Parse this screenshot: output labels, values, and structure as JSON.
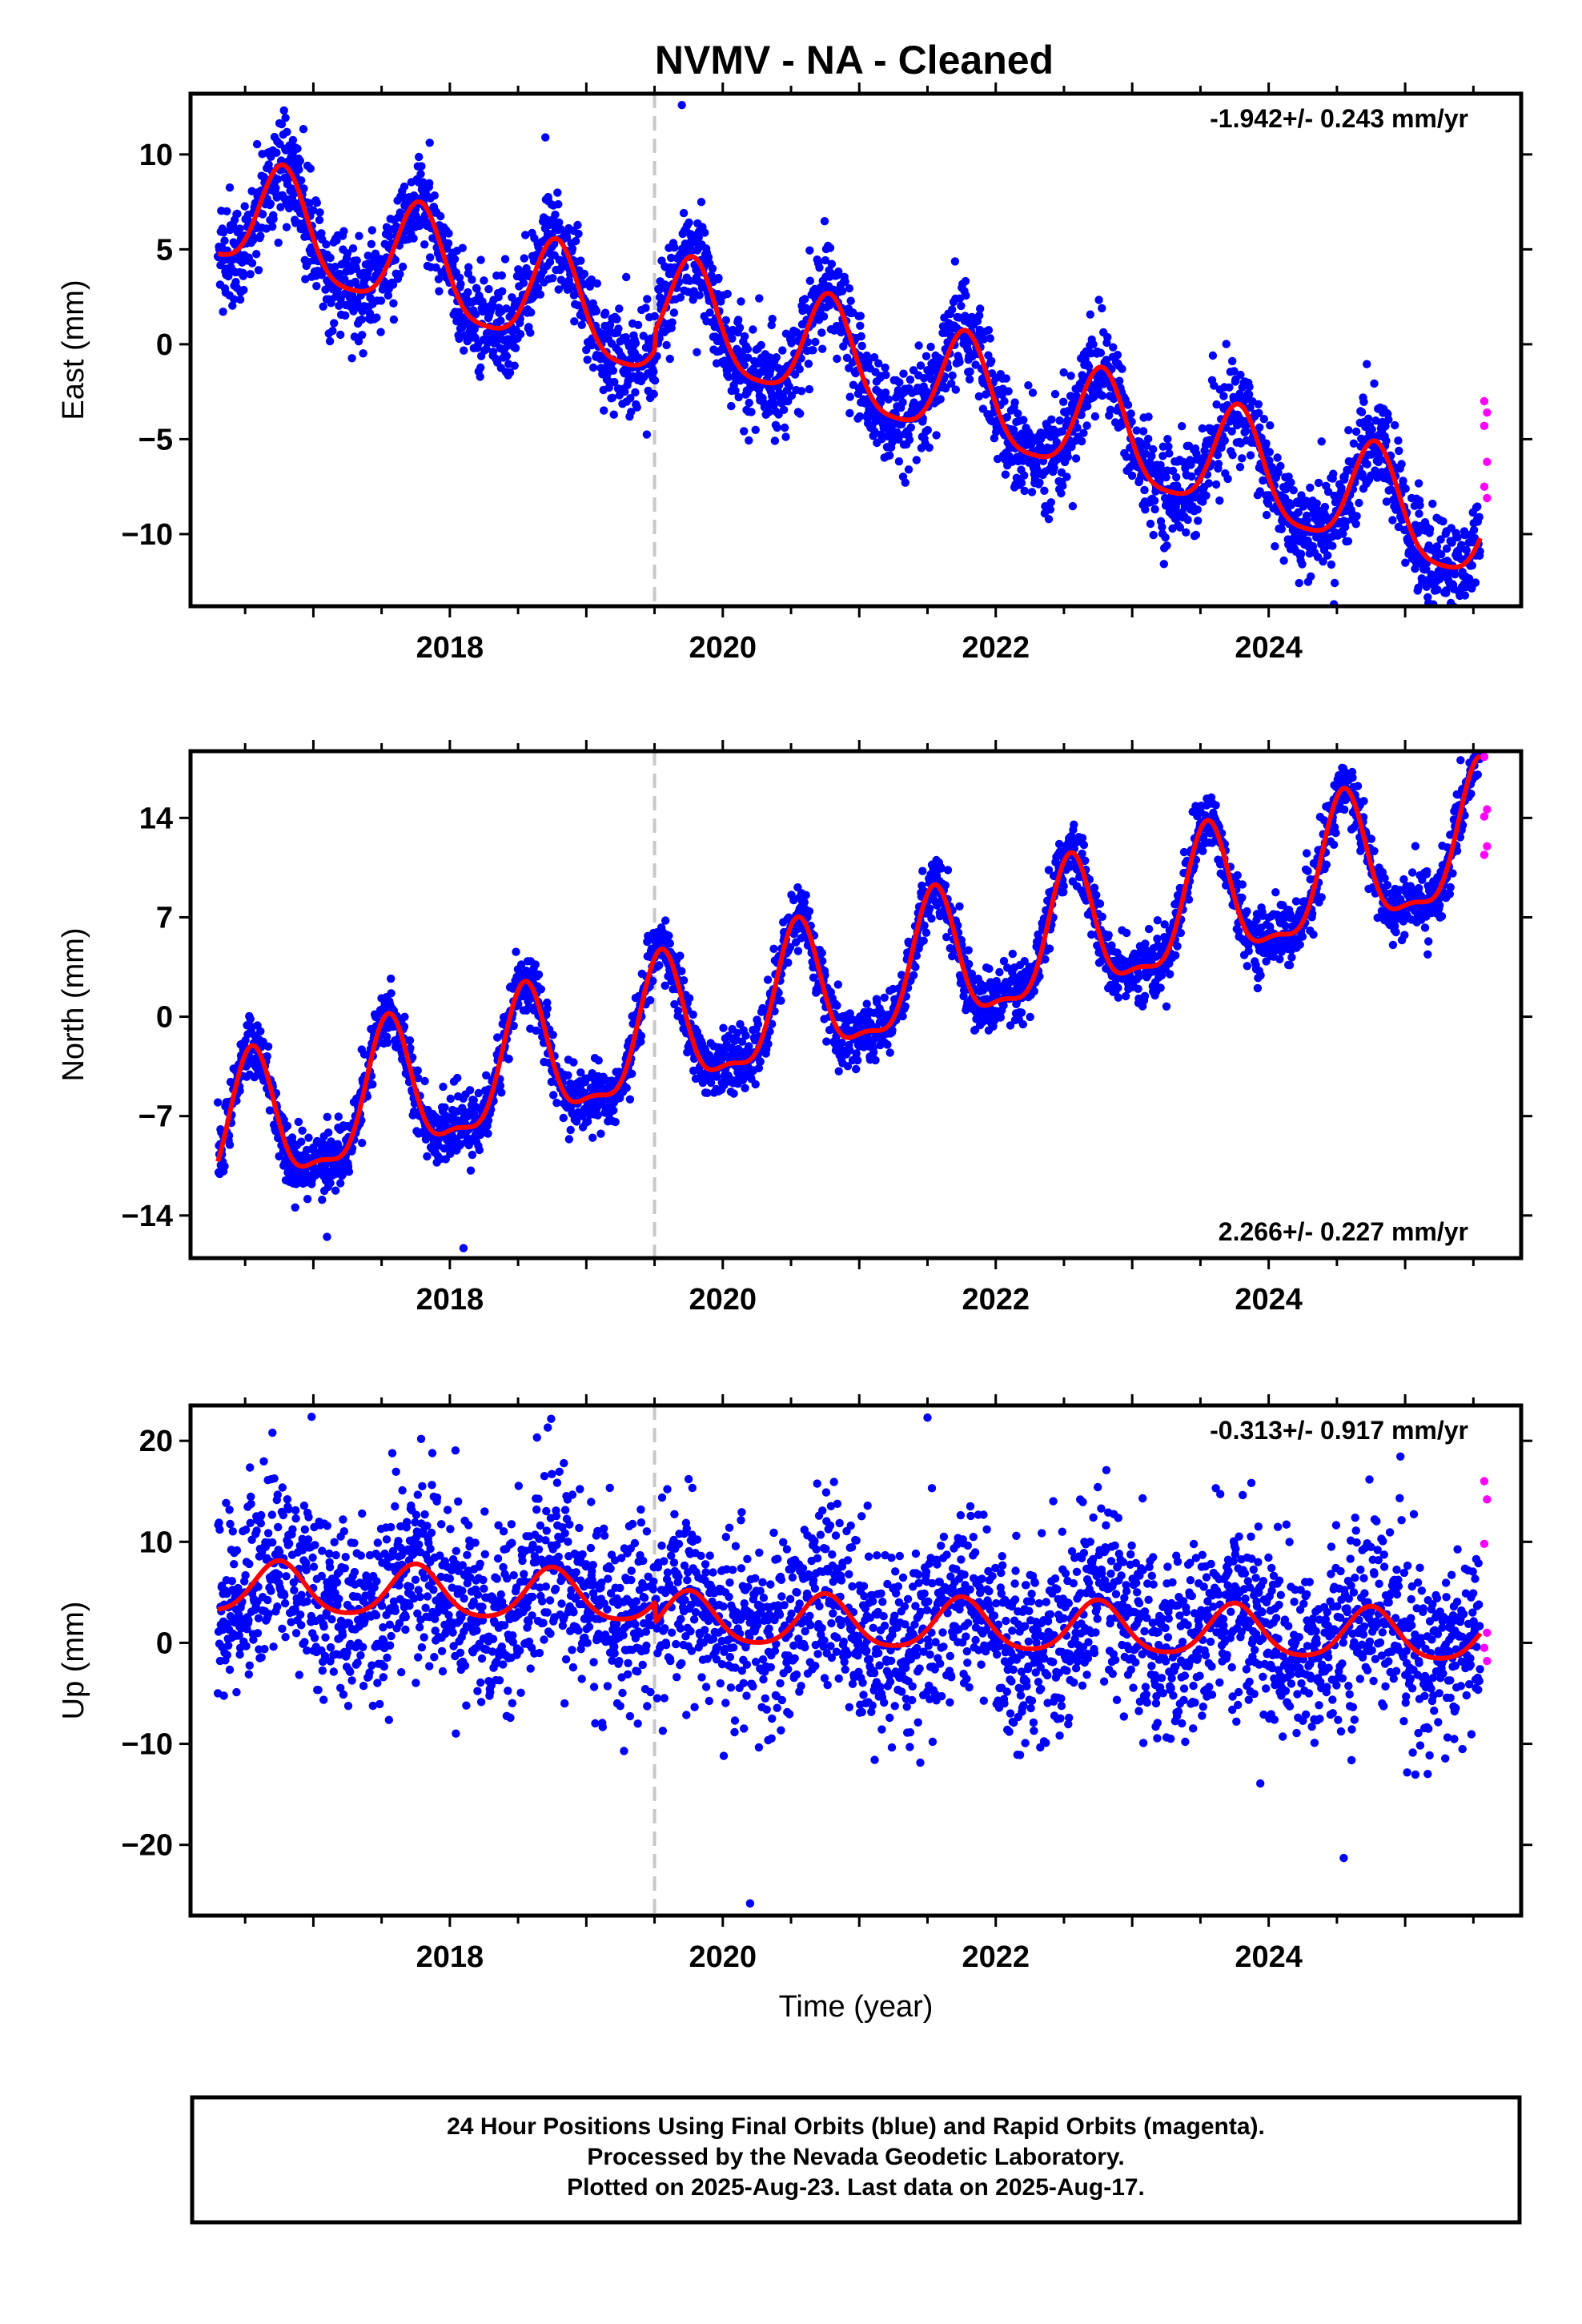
{
  "title": "NVMV  - NA - Cleaned",
  "colors": {
    "final": "#0000ff",
    "rapid": "#ff00ff",
    "model": "#ff0000",
    "marker": "#c8c8c8",
    "frame": "#000000"
  },
  "chart_data": [
    {
      "type": "scatter",
      "panel": "east",
      "ylabel": "East (mm)",
      "rate_text": "-1.942+/- 0.243 mm/yr",
      "xlim": [
        2016.1,
        2025.85
      ],
      "ylim": [
        -13.8,
        13.2
      ],
      "xticks": [
        2018,
        2020,
        2022,
        2024
      ],
      "xtick_labels": [
        "2018",
        "2020",
        "2022",
        "2024"
      ],
      "yticks": [
        10,
        5,
        0,
        -5,
        -10
      ],
      "ytick_labels": [
        "10",
        "5",
        "0",
        "−5",
        "−10"
      ],
      "grid": false,
      "equipment_change": 2019.5,
      "data_start": 2016.3,
      "data_end": 2025.55,
      "trend_mm_per_yr": -1.942,
      "value_at_start": 4.2,
      "annual_amplitude": 2.8,
      "annual_peak": 2016.78,
      "semiannual_amplitude": 0.6,
      "offset_at_marker": 1.0,
      "scatter_sd": 1.3,
      "outliers": [
        [
          2019.7,
          12.6
        ],
        [
          2018.7,
          10.9
        ],
        [
          2025.3,
          -13.1
        ]
      ],
      "rapid_points": [
        [
          2025.58,
          -3.0
        ],
        [
          2025.6,
          -3.6
        ],
        [
          2025.58,
          -4.3
        ],
        [
          2025.6,
          -6.2
        ],
        [
          2025.58,
          -7.5
        ],
        [
          2025.6,
          -8.1
        ]
      ]
    },
    {
      "type": "scatter",
      "panel": "north",
      "ylabel": "North (mm)",
      "rate_text": "2.266+/- 0.227 mm/yr",
      "xlim": [
        2016.1,
        2025.85
      ],
      "ylim": [
        -17.0,
        18.7
      ],
      "xticks": [
        2018,
        2020,
        2022,
        2024
      ],
      "xtick_labels": [
        "2018",
        "2020",
        "2022",
        "2024"
      ],
      "yticks": [
        14,
        7,
        0,
        -7,
        -14
      ],
      "ytick_labels": [
        "14",
        "7",
        "0",
        "−7",
        "−14"
      ],
      "grid": false,
      "equipment_change": 2019.5,
      "data_start": 2016.3,
      "data_end": 2025.55,
      "trend_mm_per_yr": 2.266,
      "value_at_start": -8.7,
      "annual_amplitude": 4.6,
      "annual_peak": 2016.55,
      "semiannual_amplitude": 1.5,
      "offset_at_marker": 0,
      "scatter_sd": 1.1,
      "outliers": [
        [
          2018.1,
          -16.3
        ],
        [
          2017.1,
          -15.5
        ]
      ],
      "rapid_points": [
        [
          2025.58,
          18.3
        ],
        [
          2025.6,
          14.6
        ],
        [
          2025.58,
          14.1
        ],
        [
          2025.6,
          12.0
        ],
        [
          2025.58,
          11.4
        ]
      ]
    },
    {
      "type": "scatter",
      "panel": "up",
      "ylabel": "Up (mm)",
      "xlabel": "Time (year)",
      "rate_text": "-0.313+/- 0.917 mm/yr",
      "xlim": [
        2016.1,
        2025.85
      ],
      "ylim": [
        -27.0,
        23.5
      ],
      "xticks": [
        2018,
        2020,
        2022,
        2024
      ],
      "xtick_labels": [
        "2018",
        "2020",
        "2022",
        "2024"
      ],
      "yticks": [
        20,
        10,
        0,
        -10,
        -20
      ],
      "ytick_labels": [
        "20",
        "10",
        "0",
        "−10",
        "−20"
      ],
      "grid": false,
      "equipment_change": 2019.5,
      "data_start": 2016.3,
      "data_end": 2025.55,
      "trend_mm_per_yr": -0.313,
      "value_at_start": 3.0,
      "annual_amplitude": 2.5,
      "annual_peak": 2016.75,
      "semiannual_amplitude": 0.4,
      "offset_at_marker": -2.0,
      "scatter_sd": 4.6,
      "outliers": [
        [
          2021.5,
          22.3
        ],
        [
          2016.7,
          20.8
        ],
        [
          2020.2,
          -25.8
        ],
        [
          2024.55,
          -21.3
        ]
      ],
      "rapid_points": [
        [
          2025.58,
          16.0
        ],
        [
          2025.6,
          14.2
        ],
        [
          2025.58,
          9.8
        ],
        [
          2025.6,
          1.0
        ],
        [
          2025.58,
          -0.5
        ],
        [
          2025.6,
          -1.8
        ]
      ]
    }
  ],
  "footer": {
    "line1": "24 Hour Positions Using Final Orbits (blue) and Rapid Orbits (magenta).",
    "line2": "Processed by the Nevada Geodetic Laboratory.",
    "line3": "Plotted on 2025-Aug-23. Last data on 2025-Aug-17."
  }
}
